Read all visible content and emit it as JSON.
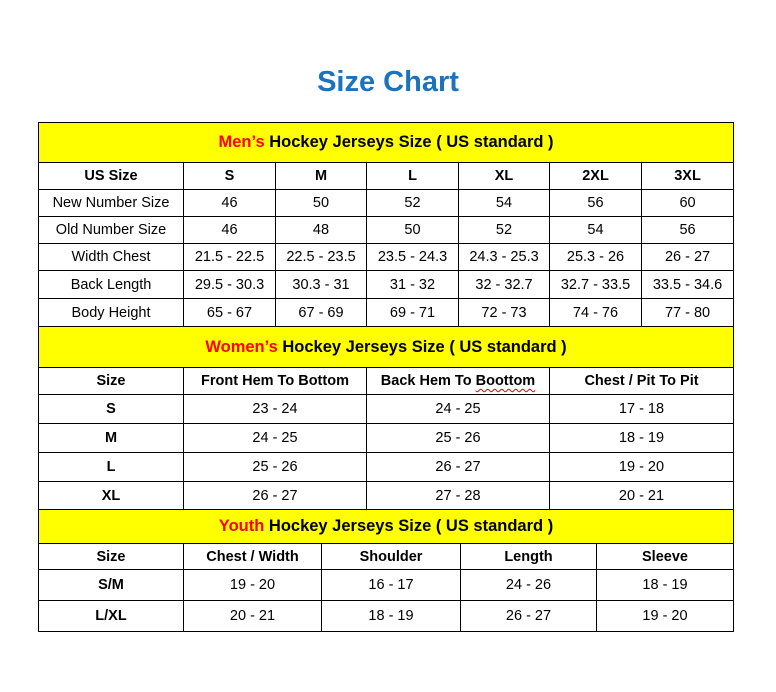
{
  "title": "Size Chart",
  "colors": {
    "title": "#1b72bf",
    "section_header_bg": "#ffff00",
    "highlight": "#ff0000"
  },
  "men": {
    "heading_highlight": "Men’s",
    "heading_rest": " Hockey Jerseys Size ( US standard )",
    "columns": [
      "US Size",
      "S",
      "M",
      "L",
      "XL",
      "2XL",
      "3XL"
    ],
    "rows": [
      [
        "New Number Size",
        "46",
        "50",
        "52",
        "54",
        "56",
        "60"
      ],
      [
        "Old Number Size",
        "46",
        "48",
        "50",
        "52",
        "54",
        "56"
      ],
      [
        "Width Chest",
        "21.5 - 22.5",
        "22.5 - 23.5",
        "23.5 - 24.3",
        "24.3 - 25.3",
        "25.3 - 26",
        "26 - 27"
      ],
      [
        "Back Length",
        "29.5 - 30.3",
        "30.3 - 31",
        "31 - 32",
        "32 - 32.7",
        "32.7 - 33.5",
        "33.5 - 34.6"
      ],
      [
        "Body Height",
        "65 - 67",
        "67 - 69",
        "69 - 71",
        "72 - 73",
        "74 - 76",
        "77 - 80"
      ]
    ]
  },
  "women": {
    "heading_highlight": "Women’s",
    "heading_rest": " Hockey Jerseys Size ( US standard )",
    "columns": [
      "Size",
      "Front Hem To Bottom",
      "Back Hem To Boottom",
      "Chest / Pit To Pit"
    ],
    "rows": [
      [
        "S",
        "23 - 24",
        "24 - 25",
        "17 - 18"
      ],
      [
        "M",
        "24 - 25",
        "25 - 26",
        "18 - 19"
      ],
      [
        "L",
        "25 - 26",
        "26 - 27",
        "19 - 20"
      ],
      [
        "XL",
        "26 - 27",
        "27 - 28",
        "20 - 21"
      ]
    ]
  },
  "youth": {
    "heading_highlight": "Youth",
    "heading_rest": " Hockey Jerseys Size ( US standard )",
    "columns": [
      "Size",
      "Chest / Width",
      "Shoulder",
      "Length",
      "Sleeve"
    ],
    "rows": [
      [
        "S/M",
        "19 - 20",
        "16 - 17",
        "24 - 26",
        "18 - 19"
      ],
      [
        "L/XL",
        "20 - 21",
        "18 - 19",
        "26 - 27",
        "19 - 20"
      ]
    ]
  }
}
